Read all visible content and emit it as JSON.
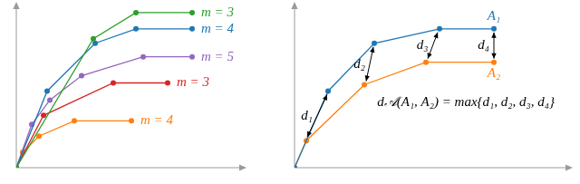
{
  "chart_data": [
    {
      "type": "line",
      "tick_labels": false,
      "grid": false,
      "xlim": [
        0,
        252
      ],
      "ylim": [
        0,
        182
      ],
      "series": [
        {
          "name": "m = 3",
          "color": "#2ca02c",
          "marker": "circle",
          "x": [
            0,
            85,
            132,
            194
          ],
          "values": [
            0,
            143,
            172,
            172
          ]
        },
        {
          "name": "m = 4",
          "color": "#1f77b4",
          "marker": "circle",
          "x": [
            0,
            34,
            87,
            132,
            194
          ],
          "values": [
            0,
            85,
            138,
            154,
            154
          ]
        },
        {
          "name": "m = 5",
          "color": "#9467bd",
          "marker": "circle",
          "x": [
            0,
            17,
            37,
            72,
            140,
            194
          ],
          "values": [
            0,
            48,
            75,
            102,
            123,
            123
          ]
        },
        {
          "name": "m = 3",
          "color": "#d62728",
          "marker": "circle",
          "x": [
            0,
            30,
            107,
            167
          ],
          "values": [
            0,
            58,
            94,
            94
          ]
        },
        {
          "name": "m = 4",
          "color": "#ff7f0e",
          "marker": "circle",
          "x": [
            0,
            7,
            25,
            64,
            127
          ],
          "values": [
            0,
            17,
            35,
            52,
            52
          ]
        }
      ]
    },
    {
      "type": "line",
      "tick_labels": false,
      "grid": false,
      "xlim": [
        0,
        305
      ],
      "ylim": [
        0,
        182
      ],
      "series": [
        {
          "name": "A₁",
          "color": "#1f77b4",
          "marker": "circle",
          "x": [
            0,
            37,
            88,
            160,
            220
          ],
          "values": [
            0,
            85,
            138,
            154,
            154
          ]
        },
        {
          "name": "A₂",
          "color": "#ff7f0e",
          "marker": "circle",
          "x": [
            0,
            13,
            77,
            145,
            220
          ],
          "values": [
            0,
            30,
            92,
            117,
            117
          ]
        }
      ],
      "distances": [
        {
          "label": "d₁",
          "from": [
            14,
            34
          ],
          "to": [
            36,
            81
          ]
        },
        {
          "label": "d₂",
          "from": [
            79,
            96
          ],
          "to": [
            87,
            134
          ]
        },
        {
          "label": "d₃",
          "from": [
            147,
            121
          ],
          "to": [
            158,
            150
          ]
        },
        {
          "label": "d₄",
          "from": [
            220,
            121
          ],
          "to": [
            220,
            150
          ]
        }
      ],
      "annotation": "d𝒜(A₁, A₂) = max{d₁, d₂, d₃, d₄}"
    }
  ]
}
